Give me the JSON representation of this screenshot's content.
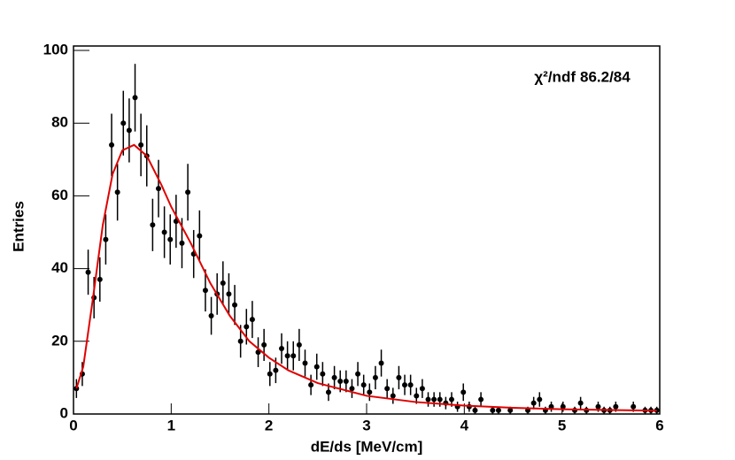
{
  "chart_data": {
    "type": "errorbar",
    "xlabel": "dE/ds [MeV/cm]",
    "ylabel": "Entries",
    "annotation": {
      "label": "χ²/ndf",
      "value": "86.2/84"
    },
    "xlim": [
      0,
      6
    ],
    "ylim": [
      0,
      100
    ],
    "xticks": [
      0,
      1,
      2,
      3,
      4,
      5,
      6
    ],
    "yticks": [
      0,
      20,
      40,
      60,
      80,
      100
    ],
    "color": "#000000",
    "x": [
      0.03,
      0.09,
      0.15,
      0.21,
      0.27,
      0.33,
      0.39,
      0.45,
      0.51,
      0.57,
      0.63,
      0.69,
      0.75,
      0.81,
      0.87,
      0.93,
      0.99,
      1.05,
      1.11,
      1.17,
      1.23,
      1.29,
      1.35,
      1.41,
      1.47,
      1.53,
      1.59,
      1.65,
      1.71,
      1.77,
      1.83,
      1.89,
      1.95,
      2.01,
      2.07,
      2.13,
      2.19,
      2.25,
      2.31,
      2.37,
      2.43,
      2.49,
      2.55,
      2.61,
      2.67,
      2.73,
      2.79,
      2.85,
      2.91,
      2.97,
      3.03,
      3.09,
      3.15,
      3.21,
      3.27,
      3.33,
      3.39,
      3.45,
      3.51,
      3.57,
      3.63,
      3.69,
      3.75,
      3.81,
      3.87,
      3.93,
      3.99,
      4.05,
      4.11,
      4.17,
      4.23,
      4.29,
      4.35,
      4.41,
      4.47,
      4.53,
      4.59,
      4.65,
      4.71,
      4.77,
      4.83,
      4.89,
      4.95,
      5.01,
      5.07,
      5.13,
      5.19,
      5.25,
      5.31,
      5.37,
      5.43,
      5.49,
      5.55,
      5.61,
      5.67,
      5.73,
      5.79,
      5.85,
      5.91,
      5.97
    ],
    "values": [
      7,
      11,
      39,
      32,
      37,
      48,
      74,
      61,
      80,
      78,
      87,
      74,
      71,
      52,
      62,
      50,
      48,
      53,
      47,
      61,
      44,
      49,
      34,
      27,
      33,
      36,
      33,
      30,
      20,
      24,
      26,
      17,
      19,
      11,
      12,
      18,
      16,
      16,
      19,
      14,
      8,
      13,
      11,
      6,
      10,
      9,
      9,
      7,
      11,
      8,
      6,
      10,
      14,
      7,
      5,
      10,
      8,
      8,
      5,
      7,
      4,
      4,
      4,
      3,
      4,
      2,
      6,
      2,
      1,
      4,
      null,
      1,
      1,
      null,
      1,
      null,
      null,
      1,
      3,
      4,
      1,
      2,
      null,
      2,
      null,
      1,
      3,
      1,
      null,
      2,
      1,
      1,
      2,
      null,
      null,
      2,
      null,
      1,
      1,
      1
    ],
    "errors": [
      2.6,
      3.3,
      6.2,
      5.7,
      6.1,
      6.9,
      8.6,
      7.8,
      8.9,
      8.8,
      9.3,
      8.6,
      8.4,
      7.2,
      7.9,
      7.1,
      6.9,
      7.3,
      6.9,
      7.8,
      6.6,
      7,
      5.8,
      5.2,
      5.7,
      6,
      5.7,
      5.5,
      4.5,
      4.9,
      5.1,
      4.1,
      4.4,
      3.3,
      3.5,
      4.2,
      4,
      4,
      4.4,
      3.7,
      2.8,
      3.6,
      3.3,
      2.4,
      3.2,
      3,
      3,
      2.6,
      3.3,
      2.8,
      2.4,
      3.2,
      3.7,
      2.6,
      2.2,
      3.2,
      2.8,
      2.8,
      2.2,
      2.6,
      2,
      2,
      2,
      1.7,
      2,
      1.4,
      2.4,
      1.4,
      1,
      2,
      null,
      1,
      1,
      null,
      1,
      null,
      null,
      1,
      1.7,
      2,
      1,
      1.4,
      null,
      1.4,
      null,
      1,
      1.7,
      1,
      null,
      1.4,
      1,
      1,
      1.4,
      null,
      null,
      1.4,
      null,
      1,
      1,
      1
    ],
    "fit": {
      "color": "#e00000",
      "x": [
        0.03,
        0.1,
        0.2,
        0.3,
        0.4,
        0.5,
        0.62,
        0.75,
        0.9,
        1.0,
        1.2,
        1.4,
        1.6,
        1.8,
        2.0,
        2.2,
        2.5,
        3.0,
        3.5,
        4.0,
        4.5,
        5.0,
        5.5,
        5.97
      ],
      "y": [
        7,
        13,
        32,
        52,
        66,
        72.5,
        74,
        71,
        63,
        57,
        47,
        36,
        27,
        20,
        15.5,
        12,
        8.5,
        5,
        3.3,
        2.3,
        1.7,
        1.3,
        1.1,
        0.9
      ]
    }
  }
}
